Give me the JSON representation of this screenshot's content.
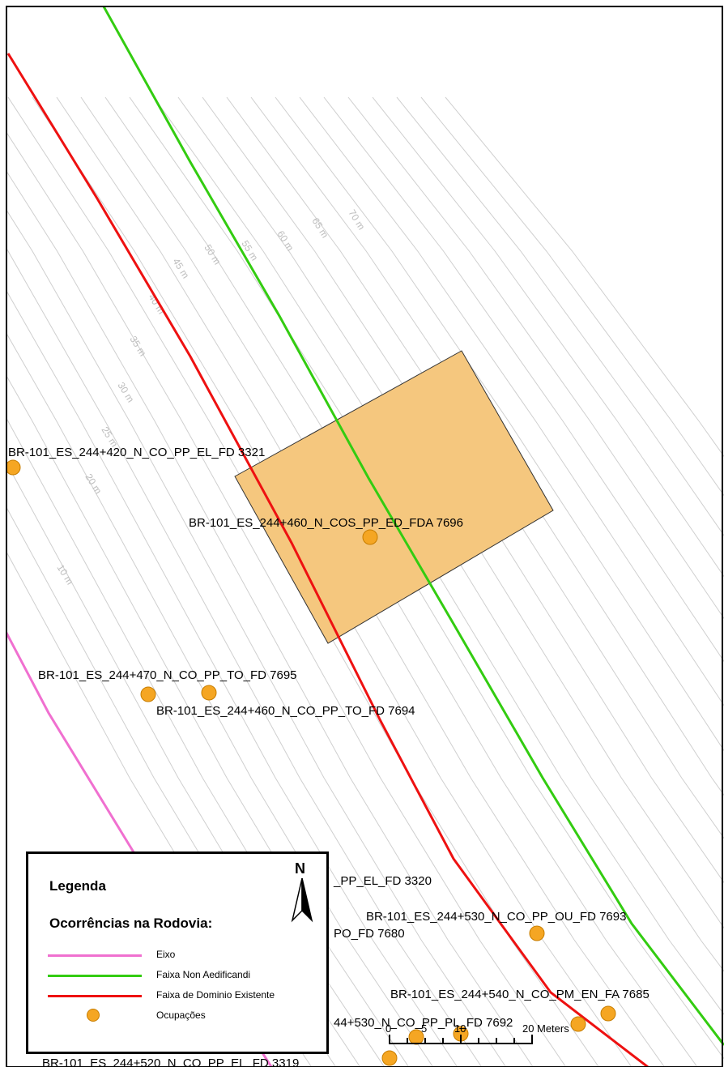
{
  "map": {
    "buffer_labels": [
      "10 m",
      "20 m",
      "25 m",
      "30 m",
      "35 m",
      "40 m",
      "45 m",
      "50 m",
      "55 m",
      "60 m",
      "65 m",
      "70 m"
    ],
    "parcel_color": "#f5c77e",
    "parcel_outline": "#333333",
    "occurrence_labels": {
      "fd3321": "BR-101_ES_244+420_N_CO_PP_EL_FD 3321",
      "fda7696": "BR-101_ES_244+460_N_COS_PP_ED_FDA 7696",
      "fd7695": "BR-101_ES_244+470_N_CO_PP_TO_FD 7695",
      "fd7694": "BR-101_ES_244+460_N_CO_PP_TO_FD 7694",
      "fd3320": "_PP_EL_FD 3320",
      "fd7693": "BR-101_ES_244+530_N_CO_PP_OU_FD 7693",
      "fd7680": "PO_FD 7680",
      "fa7685": "BR-101_ES_244+540_N_CO_PM_EN_FA 7685",
      "fd7692": "44+530_N_CO_PP_PL_FD 7692",
      "fd3319": "BR-101_ES_244+520_N_CO_PP_EL_FD 3319"
    }
  },
  "scale_bar": {
    "ticks": [
      "0",
      "5",
      "10",
      "20"
    ],
    "unit": "Meters"
  },
  "legend": {
    "title": "Legenda",
    "subtitle": "Ocorrências na Rodovia:",
    "north_label": "N",
    "items": [
      {
        "label": "Eixo",
        "color": "#f070d0",
        "icon": "line"
      },
      {
        "label": "Faixa Non Aedificandi",
        "color": "#33cc11",
        "icon": "line"
      },
      {
        "label": "Faixa de Dominio Existente",
        "color": "#ee1111",
        "icon": "line"
      },
      {
        "label": "Ocupações",
        "color": "#f5a623",
        "icon": "point-circle"
      }
    ]
  },
  "colors": {
    "eixo": "#f070d0",
    "non_aedificandi": "#33cc11",
    "dominio": "#ee1111",
    "occupation": "#f5a623",
    "buffer": "#cfcfcf"
  }
}
